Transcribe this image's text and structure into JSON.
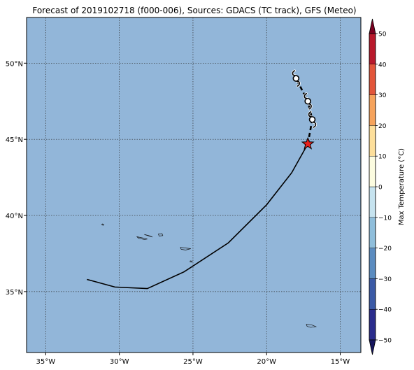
{
  "title": "Forecast of 2019102718 (f000-006), Sources: GDACS (TC track), GFS (Meteo)",
  "map": {
    "lon_range": [
      -36.3,
      -13.6
    ],
    "lat_range": [
      31.0,
      53.0
    ],
    "ocean_color": "#92b6d9",
    "lon_ticks": [
      {
        "value": -35,
        "label": "35°W"
      },
      {
        "value": -30,
        "label": "30°W"
      },
      {
        "value": -25,
        "label": "25°W"
      },
      {
        "value": -20,
        "label": "20°W"
      },
      {
        "value": -15,
        "label": "15°W"
      }
    ],
    "lat_ticks": [
      {
        "value": 35,
        "label": "35°N"
      },
      {
        "value": 40,
        "label": "40°N"
      },
      {
        "value": 45,
        "label": "45°N"
      },
      {
        "value": 50,
        "label": "50°N"
      }
    ],
    "past_track": [
      [
        -32.2,
        35.8
      ],
      [
        -30.3,
        35.3
      ],
      [
        -28.1,
        35.2
      ],
      [
        -25.6,
        36.3
      ],
      [
        -22.6,
        38.2
      ],
      [
        -20.0,
        40.7
      ],
      [
        -18.3,
        42.8
      ],
      [
        -17.2,
        44.7
      ]
    ],
    "current_position": [
      -17.2,
      44.7
    ],
    "forecast_track": [
      [
        -17.2,
        44.7
      ],
      [
        -16.9,
        46.3
      ],
      [
        -17.2,
        47.5
      ],
      [
        -18.0,
        49.0
      ]
    ],
    "forecast_symbols": [
      {
        "lon": -16.9,
        "lat": 46.3,
        "icon": "cyclone-symbol"
      },
      {
        "lon": -17.2,
        "lat": 47.5,
        "icon": "cyclone-symbol"
      },
      {
        "lon": -18.0,
        "lat": 49.0,
        "icon": "cyclone-symbol"
      }
    ],
    "islands": [
      {
        "name": "flores-corvo",
        "points": [
          [
            -31.15,
            39.45
          ],
          [
            -31.05,
            39.4
          ],
          [
            -31.1,
            39.35
          ],
          [
            -31.2,
            39.4
          ]
        ]
      },
      {
        "name": "faial-pico",
        "points": [
          [
            -28.8,
            38.6
          ],
          [
            -28.4,
            38.52
          ],
          [
            -28.1,
            38.45
          ],
          [
            -28.3,
            38.42
          ],
          [
            -28.7,
            38.5
          ]
        ]
      },
      {
        "name": "sao-jorge",
        "points": [
          [
            -28.3,
            38.75
          ],
          [
            -27.9,
            38.62
          ],
          [
            -27.75,
            38.58
          ],
          [
            -28.0,
            38.68
          ]
        ]
      },
      {
        "name": "terceira",
        "points": [
          [
            -27.35,
            38.78
          ],
          [
            -27.1,
            38.8
          ],
          [
            -27.05,
            38.68
          ],
          [
            -27.3,
            38.65
          ]
        ]
      },
      {
        "name": "sao-miguel",
        "points": [
          [
            -25.85,
            37.9
          ],
          [
            -25.4,
            37.85
          ],
          [
            -25.15,
            37.82
          ],
          [
            -25.5,
            37.73
          ],
          [
            -25.8,
            37.78
          ]
        ]
      },
      {
        "name": "santa-maria",
        "points": [
          [
            -25.18,
            37.02
          ],
          [
            -25.05,
            37.0
          ],
          [
            -25.1,
            36.93
          ],
          [
            -25.2,
            36.96
          ]
        ]
      },
      {
        "name": "madeira",
        "points": [
          [
            -17.3,
            32.85
          ],
          [
            -16.9,
            32.8
          ],
          [
            -16.65,
            32.7
          ],
          [
            -17.0,
            32.65
          ],
          [
            -17.25,
            32.72
          ]
        ]
      }
    ]
  },
  "colorbar": {
    "label": "Max Temperature (°C)",
    "min": -55,
    "max": 55,
    "ticks": [
      {
        "value": 50,
        "label": "50"
      },
      {
        "value": 40,
        "label": "40"
      },
      {
        "value": 30,
        "label": "30"
      },
      {
        "value": 20,
        "label": "20"
      },
      {
        "value": 10,
        "label": "10"
      },
      {
        "value": 0,
        "label": "0"
      },
      {
        "value": -10,
        "label": "−10"
      },
      {
        "value": -20,
        "label": "−20"
      },
      {
        "value": -30,
        "label": "−30"
      },
      {
        "value": -40,
        "label": "−40"
      },
      {
        "value": -50,
        "label": "−50"
      }
    ],
    "bins": [
      {
        "from": -50,
        "to": -40,
        "color": "#2a2c8c"
      },
      {
        "from": -40,
        "to": -30,
        "color": "#3b5aa6"
      },
      {
        "from": -30,
        "to": -20,
        "color": "#5b8cc0"
      },
      {
        "from": -20,
        "to": -10,
        "color": "#8fbedb"
      },
      {
        "from": -10,
        "to": 0,
        "color": "#c6e3ef"
      },
      {
        "from": 0,
        "to": 10,
        "color": "#fcfce0"
      },
      {
        "from": 10,
        "to": 20,
        "color": "#fddf9b"
      },
      {
        "from": 20,
        "to": 30,
        "color": "#f6a35c"
      },
      {
        "from": 30,
        "to": 40,
        "color": "#e2553a"
      },
      {
        "from": 40,
        "to": 50,
        "color": "#b8182b"
      }
    ],
    "under_color": "#15155e",
    "over_color": "#7a0020"
  }
}
